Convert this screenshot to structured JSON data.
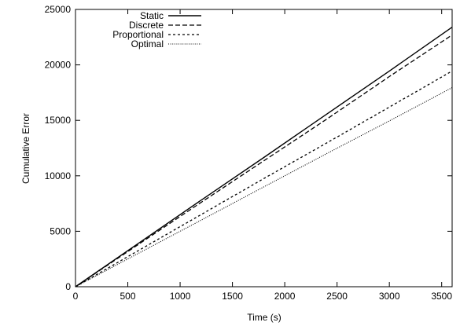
{
  "chart_data": {
    "type": "line",
    "title": "",
    "xlabel": "Time (s)",
    "ylabel": "Cumulative Error",
    "xlim": [
      0,
      3600
    ],
    "ylim": [
      0,
      25000
    ],
    "x_ticks": [
      0,
      500,
      1000,
      1500,
      2000,
      2500,
      3000,
      3500
    ],
    "y_ticks": [
      0,
      5000,
      10000,
      15000,
      20000,
      25000
    ],
    "grid": false,
    "legend_position": "top-left",
    "series": [
      {
        "name": "Static",
        "dash": "solid",
        "x": [
          0,
          600,
          1200,
          1800,
          2400,
          3000,
          3600
        ],
        "y": [
          0,
          3900,
          7800,
          11650,
          15550,
          19450,
          23400
        ]
      },
      {
        "name": "Discrete",
        "dash": "dashed",
        "x": [
          0,
          600,
          1200,
          1800,
          2400,
          3000,
          3600
        ],
        "y": [
          0,
          3800,
          7600,
          11350,
          15100,
          18950,
          22700
        ]
      },
      {
        "name": "Proportional",
        "dash": "short-dashed",
        "x": [
          0,
          600,
          1200,
          1800,
          2400,
          3000,
          3600
        ],
        "y": [
          0,
          3250,
          6500,
          9750,
          12950,
          16200,
          19450
        ]
      },
      {
        "name": "Optimal",
        "dash": "dotted",
        "x": [
          0,
          600,
          1200,
          1800,
          2400,
          3000,
          3600
        ],
        "y": [
          0,
          3000,
          6000,
          9000,
          12000,
          14950,
          17950
        ]
      }
    ]
  }
}
